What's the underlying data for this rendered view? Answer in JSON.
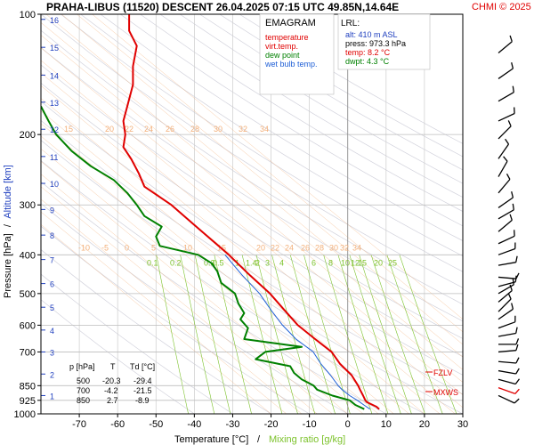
{
  "header": {
    "title": "PRAHA-LIBUS (11520)   DESCENT   26.04.2025 07:15 UTC  49.85N,14.64E",
    "credit": "CHMI © 2025"
  },
  "legend": {
    "heading": "EMAGRAM",
    "items": [
      {
        "label": "temperature",
        "color": "#e00000"
      },
      {
        "label": "virt.temp.",
        "color": "#e00000"
      },
      {
        "label": "dew point",
        "color": "#008000"
      },
      {
        "label": "wet bulb temp.",
        "color": "#1f5fd6"
      }
    ]
  },
  "lrl": {
    "heading": "LRL:",
    "lines": [
      {
        "text": "alt: 410 m ASL",
        "color": "#1f3fbf"
      },
      {
        "text": "press: 973.3 hPa",
        "color": "#000000"
      },
      {
        "text": "temp: 8.2 °C",
        "color": "#e00000"
      },
      {
        "text": "dwpt: 4.3 °C",
        "color": "#008000"
      }
    ]
  },
  "table": {
    "headers": [
      "p [hPa]",
      "T",
      "Td [°C]"
    ],
    "rows": [
      [
        "500",
        "-20.3",
        "-29.4"
      ],
      [
        "700",
        "-4.2",
        "-21.5"
      ],
      [
        "850",
        "2.7",
        "-8.9"
      ]
    ]
  },
  "markers": {
    "fzlv": "FZLV",
    "mxws": "MXWS"
  },
  "axes": {
    "ylabel_pressure": "Pressure [hPa]",
    "ylabel_sep": "/",
    "ylabel_altitude": "Altitude [km]",
    "xlabel_temp": "Temperature [°C]",
    "xlabel_sep": "/",
    "xlabel_mix": "Mixing ratio [g/kg]"
  },
  "colors": {
    "temperature": "#e00000",
    "dewpoint": "#008000",
    "wetbulb": "#1f5fd6",
    "isotherm": "#f3b07a",
    "dry_adiabat": "#d2d2dc",
    "mixing_ratio": "#7cc22b",
    "wind": "#000000",
    "wind_max": "#e00000"
  },
  "chart_data": {
    "type": "line",
    "title": "",
    "xlabel": "Temperature [°C]",
    "ylabel": "Pressure [hPa]",
    "y_scale": "log",
    "xlim": [
      -80,
      30
    ],
    "ylim": [
      1000,
      100
    ],
    "x_ticks": [
      -70,
      -60,
      -50,
      -40,
      -30,
      -20,
      -10,
      0,
      10,
      20,
      30
    ],
    "y_ticks": [
      100,
      200,
      300,
      400,
      500,
      600,
      700,
      850,
      925,
      1000
    ],
    "altitude_km_ticks": [
      {
        "km": 1,
        "p": 900
      },
      {
        "km": 2,
        "p": 795
      },
      {
        "km": 3,
        "p": 700
      },
      {
        "km": 4,
        "p": 617
      },
      {
        "km": 5,
        "p": 541
      },
      {
        "km": 6,
        "p": 472
      },
      {
        "km": 7,
        "p": 411
      },
      {
        "km": 8,
        "p": 357
      },
      {
        "km": 9,
        "p": 308
      },
      {
        "km": 10,
        "p": 265
      },
      {
        "km": 11,
        "p": 227
      },
      {
        "km": 12,
        "p": 194
      },
      {
        "km": 13,
        "p": 166
      },
      {
        "km": 14,
        "p": 142
      },
      {
        "km": 15,
        "p": 121
      },
      {
        "km": 16,
        "p": 103
      }
    ],
    "isotherm_labels_top": [
      15,
      20,
      22,
      24,
      26,
      28,
      30,
      32,
      34
    ],
    "isotherm_labels_mid": [
      -10,
      -5,
      0,
      5,
      10,
      15,
      20,
      22,
      24,
      26,
      28,
      30,
      32,
      34
    ],
    "mixing_ratio_labels": [
      "0.1",
      "0.2",
      "0.3",
      "0.5",
      "1",
      "1.4",
      "2",
      "3",
      "4",
      "6",
      "8",
      "10",
      "12",
      "15",
      "20",
      "25"
    ],
    "series": [
      {
        "name": "temperature",
        "points": [
          {
            "p": 973.3,
            "t": 8.2
          },
          {
            "p": 960,
            "t": 7.5
          },
          {
            "p": 935,
            "t": 5.0
          },
          {
            "p": 925,
            "t": 4.6
          },
          {
            "p": 900,
            "t": 4.0
          },
          {
            "p": 870,
            "t": 3.2
          },
          {
            "p": 850,
            "t": 2.7
          },
          {
            "p": 800,
            "t": 1.0
          },
          {
            "p": 750,
            "t": -2.0
          },
          {
            "p": 700,
            "t": -4.2
          },
          {
            "p": 650,
            "t": -8.5
          },
          {
            "p": 600,
            "t": -13.0
          },
          {
            "p": 550,
            "t": -16.5
          },
          {
            "p": 500,
            "t": -20.3
          },
          {
            "p": 450,
            "t": -25.5
          },
          {
            "p": 400,
            "t": -31.0
          },
          {
            "p": 350,
            "t": -38.0
          },
          {
            "p": 300,
            "t": -46.0
          },
          {
            "p": 270,
            "t": -53.0
          },
          {
            "p": 250,
            "t": -54.5
          },
          {
            "p": 230,
            "t": -56.5
          },
          {
            "p": 215,
            "t": -58.5
          },
          {
            "p": 200,
            "t": -58.0
          },
          {
            "p": 185,
            "t": -58.5
          },
          {
            "p": 170,
            "t": -57.5
          },
          {
            "p": 150,
            "t": -56.0
          },
          {
            "p": 135,
            "t": -56.0
          },
          {
            "p": 120,
            "t": -55.0
          },
          {
            "p": 110,
            "t": -57.0
          },
          {
            "p": 100,
            "t": -57.0
          }
        ]
      },
      {
        "name": "dew point",
        "points": [
          {
            "p": 973.3,
            "t": 4.3
          },
          {
            "p": 950,
            "t": 2.0
          },
          {
            "p": 925,
            "t": 0.5
          },
          {
            "p": 900,
            "t": -4.0
          },
          {
            "p": 870,
            "t": -8.0
          },
          {
            "p": 850,
            "t": -8.9
          },
          {
            "p": 820,
            "t": -12.0
          },
          {
            "p": 790,
            "t": -14.0
          },
          {
            "p": 760,
            "t": -15.0
          },
          {
            "p": 730,
            "t": -24.0
          },
          {
            "p": 700,
            "t": -21.5
          },
          {
            "p": 680,
            "t": -12.0
          },
          {
            "p": 650,
            "t": -27.0
          },
          {
            "p": 610,
            "t": -26.0
          },
          {
            "p": 580,
            "t": -28.0
          },
          {
            "p": 560,
            "t": -27.0
          },
          {
            "p": 530,
            "t": -28.5
          },
          {
            "p": 500,
            "t": -29.4
          },
          {
            "p": 470,
            "t": -33.0
          },
          {
            "p": 440,
            "t": -34.0
          },
          {
            "p": 420,
            "t": -35.5
          },
          {
            "p": 400,
            "t": -39.0
          },
          {
            "p": 380,
            "t": -49.0
          },
          {
            "p": 360,
            "t": -50.0
          },
          {
            "p": 340,
            "t": -48.5
          },
          {
            "p": 320,
            "t": -53.0
          },
          {
            "p": 300,
            "t": -55.0
          },
          {
            "p": 280,
            "t": -57.5
          },
          {
            "p": 260,
            "t": -61.0
          },
          {
            "p": 240,
            "t": -67.0
          },
          {
            "p": 220,
            "t": -72.0
          },
          {
            "p": 200,
            "t": -76.0
          },
          {
            "p": 185,
            "t": -78.0
          },
          {
            "p": 170,
            "t": -80.0
          }
        ]
      },
      {
        "name": "wet bulb temp.",
        "points": [
          {
            "p": 973.3,
            "t": 5.8
          },
          {
            "p": 950,
            "t": 4.2
          },
          {
            "p": 925,
            "t": 2.5
          },
          {
            "p": 900,
            "t": 0.5
          },
          {
            "p": 870,
            "t": -1.5
          },
          {
            "p": 850,
            "t": -2.5
          },
          {
            "p": 800,
            "t": -4.5
          },
          {
            "p": 750,
            "t": -7.0
          },
          {
            "p": 700,
            "t": -9.0
          },
          {
            "p": 650,
            "t": -13.5
          },
          {
            "p": 600,
            "t": -17.0
          },
          {
            "p": 550,
            "t": -20.0
          },
          {
            "p": 500,
            "t": -23.0
          },
          {
            "p": 450,
            "t": -27.5
          },
          {
            "p": 400,
            "t": -32.0
          }
        ]
      }
    ]
  }
}
